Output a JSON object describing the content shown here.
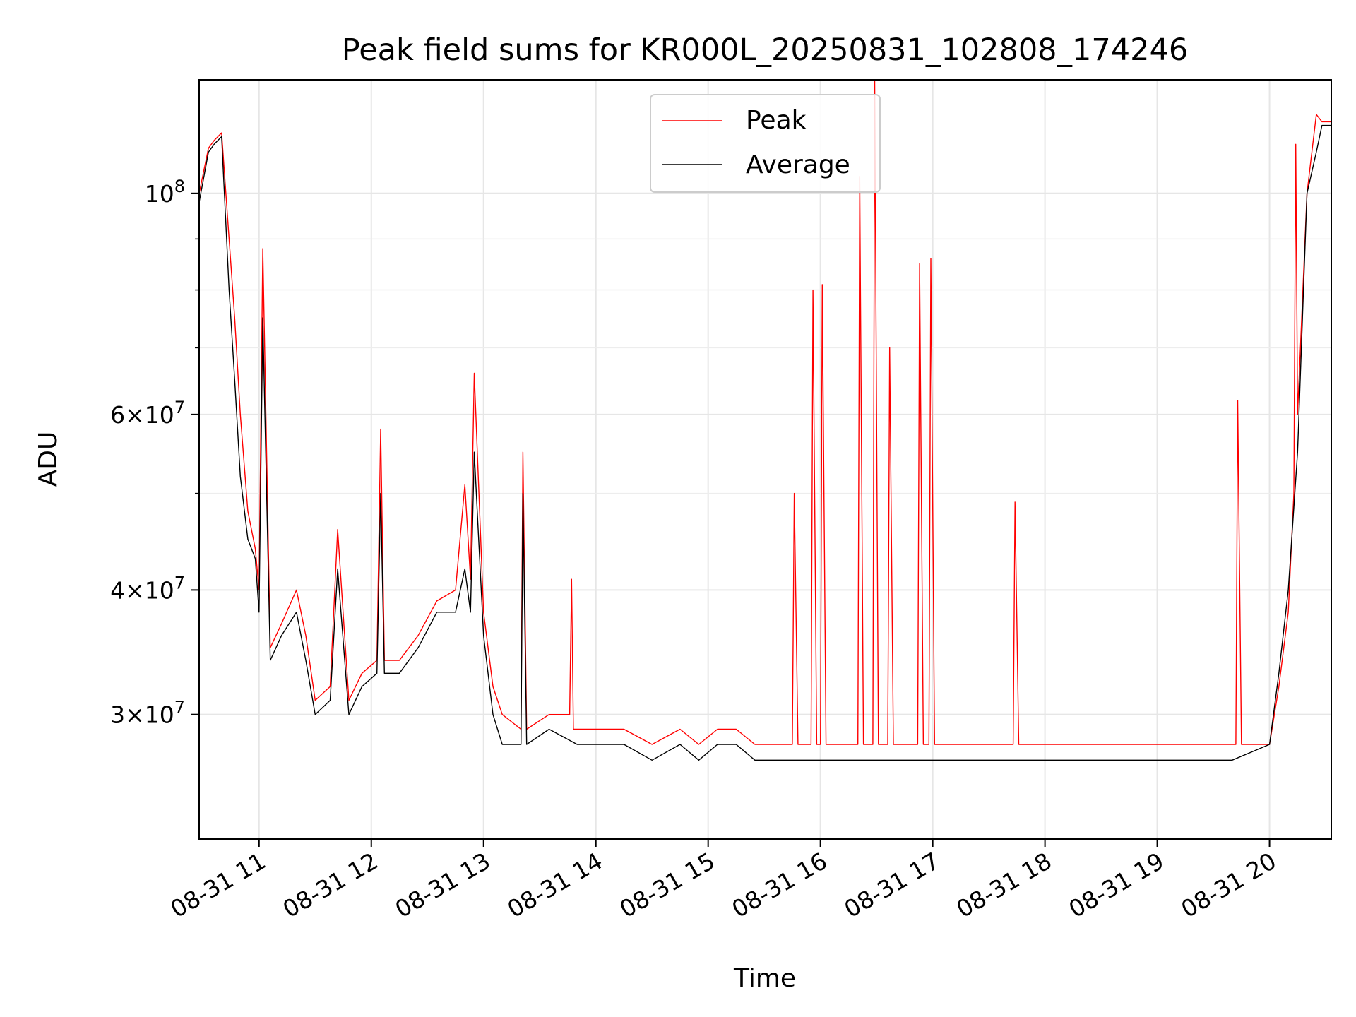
{
  "chart_data": {
    "type": "line",
    "title": "Peak field sums for KR000L_20250831_102808_174246",
    "xlabel": "Time",
    "ylabel": "ADU",
    "yscale": "log",
    "xlim": [
      "2025-08-31 10:28",
      "2025-08-31 20:33"
    ],
    "ylim": [
      22500000,
      130000000
    ],
    "grid": true,
    "legend": "upper center",
    "x_ticks": [
      "2025-08-31 11:00",
      "2025-08-31 12:00",
      "2025-08-31 13:00",
      "2025-08-31 14:00",
      "2025-08-31 15:00",
      "2025-08-31 16:00",
      "2025-08-31 17:00",
      "2025-08-31 18:00",
      "2025-08-31 19:00",
      "2025-08-31 20:00"
    ],
    "x_tick_labels": [
      "08-31 11",
      "08-31 12",
      "08-31 13",
      "08-31 14",
      "08-31 15",
      "08-31 16",
      "08-31 17",
      "08-31 18",
      "08-31 19",
      "08-31 20"
    ],
    "y_major_ticks": [
      30000000,
      40000000,
      60000000,
      100000000
    ],
    "y_tick_labels": [
      {
        "coef": "3",
        "base": "10",
        "exp": "7"
      },
      {
        "coef": "4",
        "base": "10",
        "exp": "7"
      },
      {
        "coef": "6",
        "base": "10",
        "exp": "7"
      },
      {
        "coef": "",
        "base": "10",
        "exp": "8"
      }
    ],
    "y_minor_ticks": [
      50000000,
      70000000,
      80000000,
      90000000
    ],
    "series": [
      {
        "name": "Peak",
        "color": "#ff0000",
        "x": [
          "2025-08-31 10:28",
          "2025-08-31 10:33",
          "2025-08-31 10:36",
          "2025-08-31 10:40",
          "2025-08-31 10:44",
          "2025-08-31 10:47",
          "2025-08-31 10:50",
          "2025-08-31 10:54",
          "2025-08-31 10:58",
          "2025-08-31 11:00",
          "2025-08-31 11:02",
          "2025-08-31 11:06",
          "2025-08-31 11:12",
          "2025-08-31 11:20",
          "2025-08-31 11:25",
          "2025-08-31 11:30",
          "2025-08-31 11:38",
          "2025-08-31 11:42",
          "2025-08-31 11:48",
          "2025-08-31 11:55",
          "2025-08-31 12:03",
          "2025-08-31 12:05",
          "2025-08-31 12:07",
          "2025-08-31 12:15",
          "2025-08-31 12:25",
          "2025-08-31 12:35",
          "2025-08-31 12:45",
          "2025-08-31 12:50",
          "2025-08-31 12:53",
          "2025-08-31 12:55",
          "2025-08-31 13:00",
          "2025-08-31 13:05",
          "2025-08-31 13:10",
          "2025-08-31 13:20",
          "2025-08-31 13:21",
          "2025-08-31 13:23",
          "2025-08-31 13:35",
          "2025-08-31 13:46",
          "2025-08-31 13:47",
          "2025-08-31 13:48",
          "2025-08-31 14:00",
          "2025-08-31 14:15",
          "2025-08-31 14:30",
          "2025-08-31 14:45",
          "2025-08-31 14:55",
          "2025-08-31 15:05",
          "2025-08-31 15:15",
          "2025-08-31 15:25",
          "2025-08-31 15:35",
          "2025-08-31 15:45",
          "2025-08-31 15:46",
          "2025-08-31 15:48",
          "2025-08-31 15:55",
          "2025-08-31 15:56",
          "2025-08-31 15:58",
          "2025-08-31 16:00",
          "2025-08-31 16:01",
          "2025-08-31 16:03",
          "2025-08-31 16:10",
          "2025-08-31 16:20",
          "2025-08-31 16:21",
          "2025-08-31 16:23",
          "2025-08-31 16:28",
          "2025-08-31 16:29",
          "2025-08-31 16:31",
          "2025-08-31 16:36",
          "2025-08-31 16:37",
          "2025-08-31 16:39",
          "2025-08-31 16:52",
          "2025-08-31 16:53",
          "2025-08-31 16:55",
          "2025-08-31 16:58",
          "2025-08-31 16:59",
          "2025-08-31 17:01",
          "2025-08-31 17:05",
          "2025-08-31 17:20",
          "2025-08-31 17:30",
          "2025-08-31 17:43",
          "2025-08-31 17:44",
          "2025-08-31 17:46",
          "2025-08-31 18:00",
          "2025-08-31 18:20",
          "2025-08-31 18:40",
          "2025-08-31 19:00",
          "2025-08-31 19:20",
          "2025-08-31 19:42",
          "2025-08-31 19:43",
          "2025-08-31 19:45",
          "2025-08-31 20:00",
          "2025-08-31 20:05",
          "2025-08-31 20:10",
          "2025-08-31 20:13",
          "2025-08-31 20:14",
          "2025-08-31 20:15",
          "2025-08-31 20:20",
          "2025-08-31 20:25",
          "2025-08-31 20:28",
          "2025-08-31 20:33"
        ],
        "y": [
          100000000,
          111000000,
          113000000,
          115000000,
          90000000,
          75000000,
          60000000,
          48000000,
          44000000,
          40000000,
          88000000,
          35000000,
          37000000,
          40000000,
          36000000,
          31000000,
          32000000,
          46000000,
          31000000,
          33000000,
          34000000,
          58000000,
          34000000,
          34000000,
          36000000,
          39000000,
          40000000,
          51000000,
          41000000,
          66000000,
          38000000,
          32000000,
          30000000,
          29000000,
          55000000,
          29000000,
          30000000,
          30000000,
          41000000,
          29000000,
          29000000,
          29000000,
          28000000,
          29000000,
          28000000,
          29000000,
          29000000,
          28000000,
          28000000,
          28000000,
          50000000,
          28000000,
          28000000,
          80000000,
          28000000,
          28000000,
          81000000,
          28000000,
          28000000,
          28000000,
          104000000,
          28000000,
          28000000,
          131000000,
          28000000,
          28000000,
          70000000,
          28000000,
          28000000,
          85000000,
          28000000,
          28000000,
          86000000,
          28000000,
          28000000,
          28000000,
          28000000,
          28000000,
          49000000,
          28000000,
          28000000,
          28000000,
          28000000,
          28000000,
          28000000,
          28000000,
          62000000,
          28000000,
          28000000,
          32000000,
          38000000,
          50000000,
          112000000,
          60000000,
          100000000,
          120000000,
          118000000,
          118000000
        ]
      },
      {
        "name": "Average",
        "color": "#000000",
        "x": [
          "2025-08-31 10:28",
          "2025-08-31 10:33",
          "2025-08-31 10:36",
          "2025-08-31 10:40",
          "2025-08-31 10:44",
          "2025-08-31 10:47",
          "2025-08-31 10:50",
          "2025-08-31 10:54",
          "2025-08-31 10:58",
          "2025-08-31 11:00",
          "2025-08-31 11:02",
          "2025-08-31 11:06",
          "2025-08-31 11:12",
          "2025-08-31 11:20",
          "2025-08-31 11:25",
          "2025-08-31 11:30",
          "2025-08-31 11:38",
          "2025-08-31 11:42",
          "2025-08-31 11:48",
          "2025-08-31 11:55",
          "2025-08-31 12:03",
          "2025-08-31 12:05",
          "2025-08-31 12:07",
          "2025-08-31 12:15",
          "2025-08-31 12:25",
          "2025-08-31 12:35",
          "2025-08-31 12:45",
          "2025-08-31 12:50",
          "2025-08-31 12:53",
          "2025-08-31 12:55",
          "2025-08-31 13:00",
          "2025-08-31 13:05",
          "2025-08-31 13:10",
          "2025-08-31 13:20",
          "2025-08-31 13:21",
          "2025-08-31 13:23",
          "2025-08-31 13:35",
          "2025-08-31 13:50",
          "2025-08-31 14:00",
          "2025-08-31 14:15",
          "2025-08-31 14:30",
          "2025-08-31 14:45",
          "2025-08-31 14:55",
          "2025-08-31 15:05",
          "2025-08-31 15:15",
          "2025-08-31 15:25",
          "2025-08-31 15:35",
          "2025-08-31 15:50",
          "2025-08-31 16:10",
          "2025-08-31 16:30",
          "2025-08-31 16:50",
          "2025-08-31 17:05",
          "2025-08-31 17:20",
          "2025-08-31 17:30",
          "2025-08-31 17:45",
          "2025-08-31 18:00",
          "2025-08-31 18:20",
          "2025-08-31 18:40",
          "2025-08-31 19:00",
          "2025-08-31 19:20",
          "2025-08-31 19:40",
          "2025-08-31 20:00",
          "2025-08-31 20:05",
          "2025-08-31 20:10",
          "2025-08-31 20:15",
          "2025-08-31 20:20",
          "2025-08-31 20:25",
          "2025-08-31 20:28",
          "2025-08-31 20:33"
        ],
        "y": [
          98000000,
          110000000,
          112000000,
          114000000,
          80000000,
          65000000,
          52000000,
          45000000,
          43000000,
          38000000,
          75000000,
          34000000,
          36000000,
          38000000,
          34000000,
          30000000,
          31000000,
          42000000,
          30000000,
          32000000,
          33000000,
          50000000,
          33000000,
          33000000,
          35000000,
          38000000,
          38000000,
          42000000,
          38000000,
          55000000,
          36000000,
          30000000,
          28000000,
          28000000,
          50000000,
          28000000,
          29000000,
          28000000,
          28000000,
          28000000,
          27000000,
          28000000,
          27000000,
          28000000,
          28000000,
          27000000,
          27000000,
          27000000,
          27000000,
          27000000,
          27000000,
          27000000,
          27000000,
          27000000,
          27000000,
          27000000,
          27000000,
          27000000,
          27000000,
          27000000,
          27000000,
          28000000,
          33000000,
          40000000,
          55000000,
          100000000,
          110000000,
          117000000,
          117000000
        ]
      }
    ]
  }
}
